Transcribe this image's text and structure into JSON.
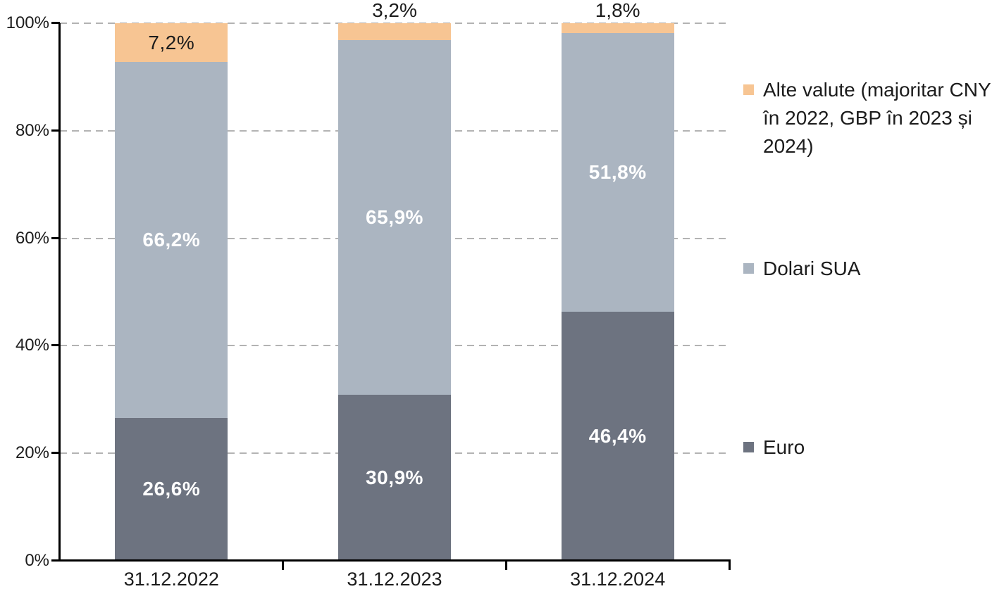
{
  "chart_data": {
    "type": "bar",
    "stacked": true,
    "orientation": "vertical",
    "background": "#FFFFFF",
    "categories": [
      "31.12.2022",
      "31.12.2023",
      "31.12.2024"
    ],
    "series": [
      {
        "name": "Euro",
        "color": "#6D7380",
        "values": [
          26.6,
          30.9,
          46.4
        ],
        "data_labels": [
          "26,6%",
          "30,9%",
          "46,4%"
        ],
        "label_color": "#FFFFFF",
        "label_bold": true
      },
      {
        "name": "Dolari SUA",
        "color": "#ABB5C1",
        "values": [
          66.2,
          65.9,
          51.8
        ],
        "data_labels": [
          "66,2%",
          "65,9%",
          "51,8%"
        ],
        "label_color": "#FFFFFF",
        "label_bold": true
      },
      {
        "name": "Alte valute (majoritar CNY în 2022, GBP în 2023 și 2024)",
        "color": "#F7C593",
        "values": [
          7.2,
          3.2,
          1.8
        ],
        "data_labels": [
          "7,2%",
          "3,2%",
          "1,8%"
        ],
        "label_color": "#1C1C1C",
        "label_bold": false
      }
    ],
    "ylim": [
      0,
      100
    ],
    "yticks": [
      {
        "value": 0,
        "label": "0%"
      },
      {
        "value": 20,
        "label": "20%"
      },
      {
        "value": 40,
        "label": "40%"
      },
      {
        "value": 60,
        "label": "60%"
      },
      {
        "value": 80,
        "label": "80%"
      },
      {
        "value": 100,
        "label": "100%"
      }
    ],
    "grid": "horizontal-dashed",
    "gridline_color": "#B3B3B3",
    "axis_color": "#000000",
    "legend_position": "right",
    "legend": [
      {
        "label": "Alte valute (majoritar CNY în 2022, GBP în 2023 și 2024)",
        "color": "#F7C593"
      },
      {
        "label": "Dolari SUA",
        "color": "#ABB5C1"
      },
      {
        "label": "Euro",
        "color": "#6D7380"
      }
    ]
  }
}
